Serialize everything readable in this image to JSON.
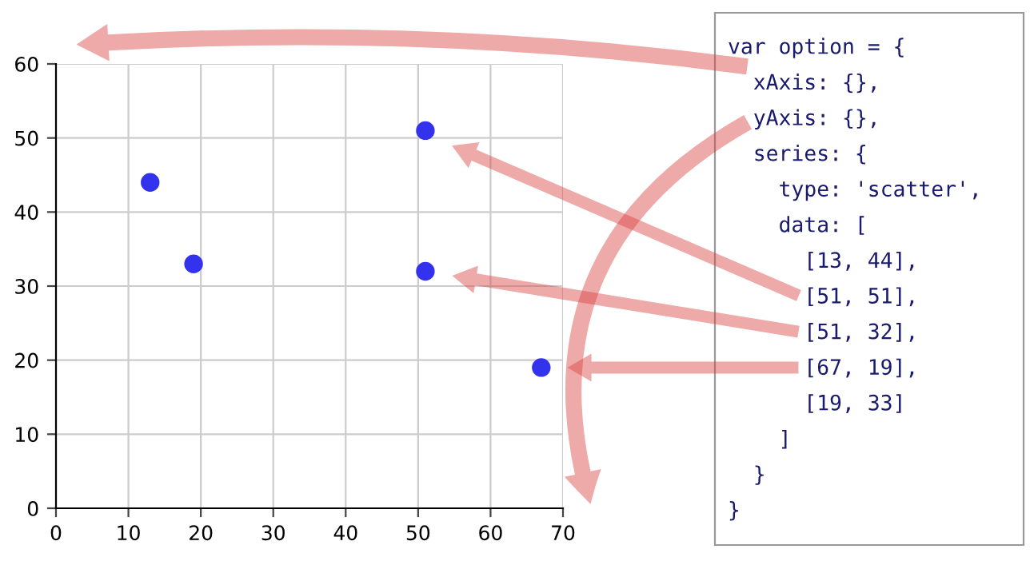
{
  "chart_data": {
    "type": "scatter",
    "x": [
      13,
      51,
      51,
      67,
      19
    ],
    "values": [
      44,
      51,
      32,
      19,
      33
    ],
    "color": "#3333ee",
    "marker": "circle",
    "xlim": [
      0,
      70
    ],
    "xticks": [
      0,
      10,
      20,
      30,
      40,
      50,
      60,
      70
    ],
    "ylim": [
      0,
      60
    ],
    "yticks": [
      0,
      10,
      20,
      30,
      40,
      50,
      60
    ],
    "grid": true,
    "annotations": [
      "var option = {",
      "  xAxis: {},",
      "  yAxis: {},",
      "  series: {",
      "    type: 'scatter',",
      "    data: [",
      "      [13, 44],",
      "      [51, 51],",
      "      [51, 32],",
      "      [67, 19],",
      "      [19, 33]",
      "    ]",
      "  }",
      "}"
    ]
  }
}
